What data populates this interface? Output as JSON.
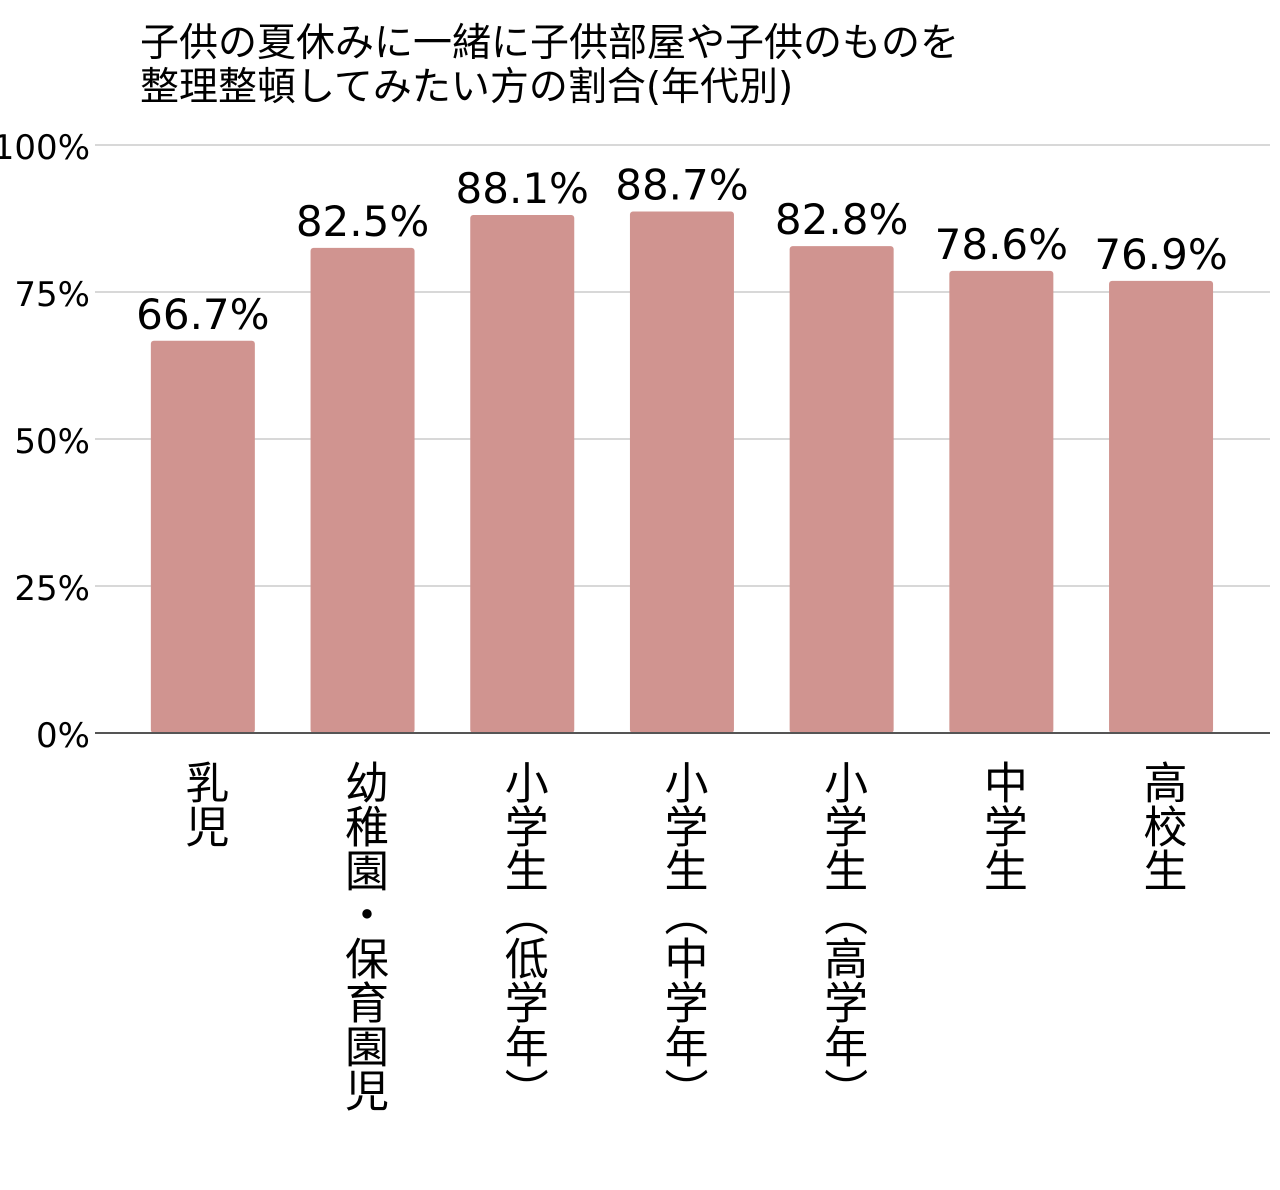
{
  "chart_data": {
    "type": "bar",
    "title": [
      "子供の夏休みに一緒に子供部屋や子供のものを",
      "整理整頓してみたい方の割合(年代別)"
    ],
    "categories": [
      "乳児",
      "幼稚園・保育園児",
      "小学生（低学年）",
      "小学生（中学年）",
      "小学生（高学年）",
      "中学生",
      "高校生"
    ],
    "values": [
      66.7,
      82.5,
      88.1,
      88.7,
      82.8,
      78.6,
      76.9
    ],
    "value_labels": [
      "66.7%",
      "82.5%",
      "88.1%",
      "88.7%",
      "82.8%",
      "78.6%",
      "76.9%"
    ],
    "color": "#d09490",
    "ylim": [
      0,
      100
    ],
    "yticks": [
      {
        "value": 0,
        "label": "0%"
      },
      {
        "value": 25,
        "label": "25%"
      },
      {
        "value": 50,
        "label": "50%"
      },
      {
        "value": 75,
        "label": "75%"
      },
      {
        "value": 100,
        "label": "100%"
      }
    ],
    "grid": true
  }
}
